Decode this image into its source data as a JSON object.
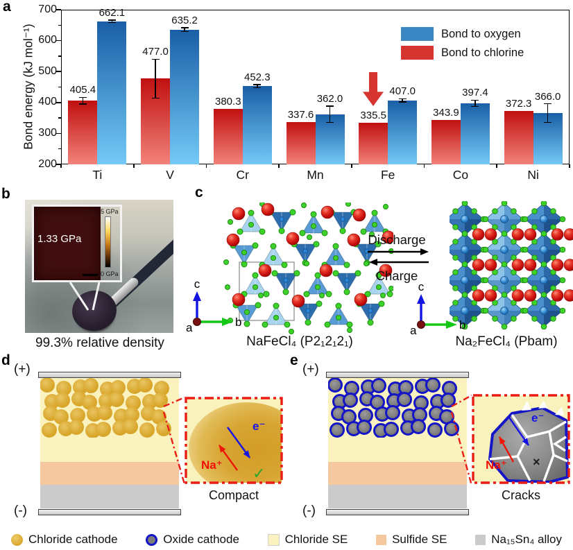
{
  "panel_a": {
    "label": "a",
    "legend": [
      {
        "label": "Bond to oxygen",
        "color": "#3a87c4"
      },
      {
        "label": "Bond to chlorine",
        "color": "#d6342f"
      }
    ]
  },
  "chart_data": {
    "type": "bar",
    "title": "",
    "categories": [
      "Ti",
      "V",
      "Cr",
      "Mn",
      "Fe",
      "Co",
      "Ni"
    ],
    "series": [
      {
        "name": "Bond to chlorine",
        "color": "#d6342f",
        "gradient": [
          "#c01010",
          "#f2827a"
        ],
        "values": [
          405.4,
          477.0,
          380.3,
          337.6,
          335.5,
          343.9,
          372.3
        ],
        "errors": [
          11,
          63,
          0,
          0,
          0,
          0,
          0
        ]
      },
      {
        "name": "Bond to oxygen",
        "color": "#3a87c4",
        "gradient": [
          "#1a5fa6",
          "#74c9f7"
        ],
        "values": [
          662.1,
          635.2,
          452.3,
          362.0,
          407.0,
          397.4,
          366.0
        ],
        "errors": [
          4,
          6,
          5,
          26,
          5,
          10,
          30
        ]
      }
    ],
    "ylabel": "Bond energy (kJ mol⁻¹)",
    "xlabel": "",
    "ylim": [
      200,
      700
    ],
    "yticks": [
      200,
      300,
      400,
      500,
      600,
      700
    ],
    "legend_position": "top-right",
    "annotation": {
      "type": "down-arrow",
      "target_category": "Fe",
      "target_series": "Bond to chlorine"
    }
  },
  "panel_b": {
    "label": "b",
    "modulus_label": "1.33 GPa",
    "scale_max": "5 GPa",
    "scale_min": "0 GPa",
    "caption": "99.3% relative density"
  },
  "panel_c": {
    "label": "c",
    "discharge": "Discharge",
    "charge": "Charge",
    "axis": {
      "a": "a",
      "b": "b",
      "c": "c"
    },
    "left_caption": "NaFeCl₄ (P2₁2₁2₁)",
    "right_caption": "Na₂FeCl₄ (Pbam)"
  },
  "panel_d": {
    "label": "d",
    "positive": "(+)",
    "negative": "(-)",
    "na_label": "Na⁺",
    "e_label": "e⁻",
    "check": "✓",
    "caption": "Compact"
  },
  "panel_e": {
    "label": "e",
    "positive": "(+)",
    "negative": "(-)",
    "na_label": "Na⁺",
    "e_label": "e⁻",
    "cross": "×",
    "caption": "Cracks"
  },
  "bottom_legend": [
    {
      "label": "Chloride cathode",
      "shape": "circle",
      "color": "#d9a62a",
      "border": ""
    },
    {
      "label": "Oxide cathode",
      "shape": "circle",
      "color": "#7d7d7d",
      "border": "#1515c8"
    },
    {
      "label": "Chloride SE",
      "shape": "square",
      "color": "#FAF3C0",
      "border": "#cfcfcf"
    },
    {
      "label": "Sulfide SE",
      "shape": "square",
      "color": "#F5C8A0",
      "border": ""
    },
    {
      "label": "Na₁₅Sn₄ alloy",
      "shape": "square",
      "color": "#CBCBCB",
      "border": ""
    }
  ],
  "colors": {
    "oxygen_bar_top": "#1a5fa6",
    "oxygen_bar_bottom": "#74c9f7",
    "chlorine_bar_top": "#c01010",
    "chlorine_bar_bottom": "#f2827a",
    "accent_red": "#ea1c16",
    "deep_blue": "#1515c8",
    "chloride_se": "#FBF3BF",
    "sulfide_se": "#F5C8A0",
    "alloy_gray": "#CBCBCB"
  }
}
